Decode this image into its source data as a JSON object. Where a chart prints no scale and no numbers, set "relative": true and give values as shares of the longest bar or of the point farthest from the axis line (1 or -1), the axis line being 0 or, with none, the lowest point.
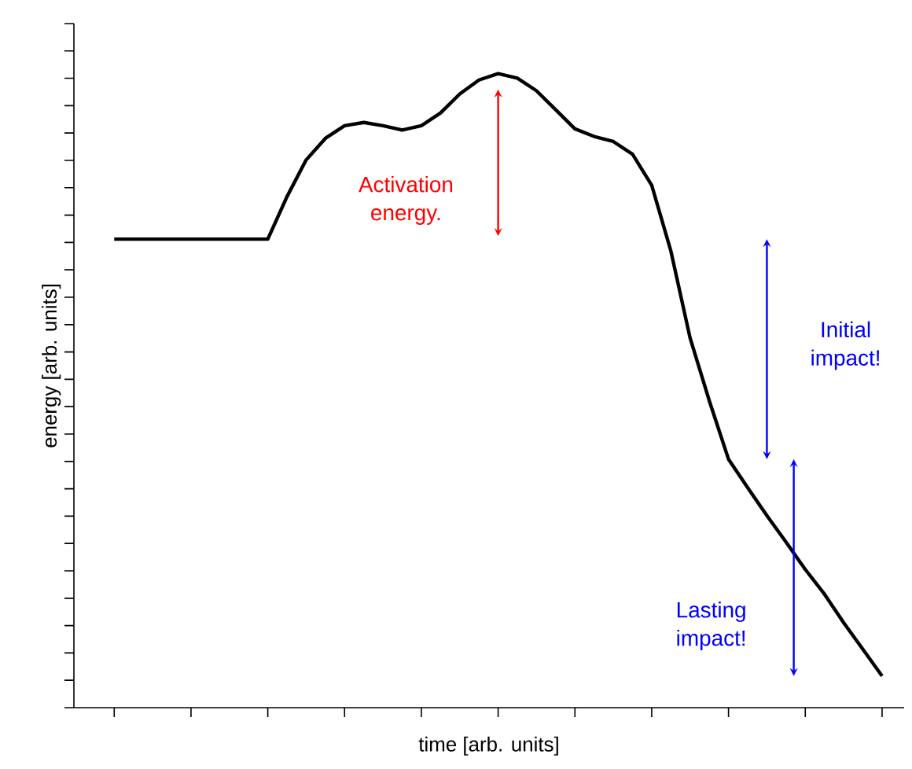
{
  "chart_data": {
    "type": "line",
    "relative": true,
    "xlabel": "time [arb. units]",
    "ylabel": "energy [arb. units]",
    "categories": [
      null,
      null,
      null,
      null,
      null,
      null,
      null,
      null,
      null,
      null,
      null,
      null,
      null,
      null,
      null,
      null,
      null,
      null,
      null,
      null,
      null,
      null,
      null,
      null,
      null,
      null,
      null,
      null,
      null,
      null,
      null,
      null,
      null,
      null,
      null,
      null,
      null,
      null,
      null,
      null,
      null
    ],
    "series": [
      {
        "color": "#000000",
        "values": [
          0.739,
          0.739,
          0.739,
          0.739,
          0.739,
          0.739,
          0.739,
          0.739,
          0.739,
          0.806,
          0.864,
          0.898,
          0.918,
          0.923,
          0.918,
          0.911,
          0.918,
          0.938,
          0.968,
          0.99,
          1,
          0.993,
          0.973,
          0.943,
          0.913,
          0.901,
          0.893,
          0.873,
          0.824,
          0.72,
          0.583,
          0.484,
          0.392,
          0.347,
          0.303,
          0.261,
          0.218,
          0.179,
          0.134,
          0.092,
          0.05
        ]
      }
    ],
    "annotations": [
      "Activation energy.",
      "Initial impact!",
      "Lasting impact!"
    ],
    "marker": "none",
    "line_style": "solid",
    "grid": false
  }
}
